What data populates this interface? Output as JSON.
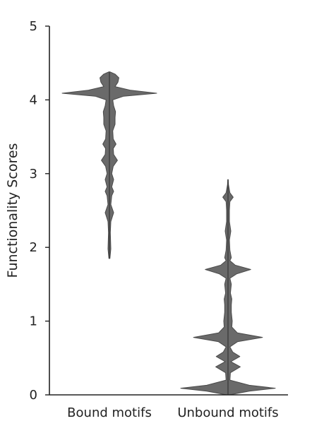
{
  "chart_data": {
    "type": "violin",
    "title": "",
    "xlabel": "",
    "ylabel": "Functionality Scores",
    "ylim": [
      0,
      5
    ],
    "yticks": [
      0,
      1,
      2,
      3,
      4,
      5
    ],
    "categories": [
      "Bound motifs",
      "Unbound motifs"
    ],
    "grid": false,
    "violin_color": "#6a6a6a",
    "series": [
      {
        "category": "Bound motifs",
        "range": [
          1.85,
          4.38
        ],
        "profile": [
          [
            1.85,
            0.01
          ],
          [
            1.98,
            0.03
          ],
          [
            2.2,
            0.02
          ],
          [
            2.35,
            0.03
          ],
          [
            2.47,
            0.09
          ],
          [
            2.58,
            0.03
          ],
          [
            2.7,
            0.05
          ],
          [
            2.76,
            0.09
          ],
          [
            2.82,
            0.05
          ],
          [
            2.92,
            0.09
          ],
          [
            3.0,
            0.05
          ],
          [
            3.1,
            0.08
          ],
          [
            3.18,
            0.17
          ],
          [
            3.26,
            0.09
          ],
          [
            3.34,
            0.08
          ],
          [
            3.4,
            0.14
          ],
          [
            3.47,
            0.08
          ],
          [
            3.58,
            0.07
          ],
          [
            3.67,
            0.12
          ],
          [
            3.76,
            0.12
          ],
          [
            3.84,
            0.13
          ],
          [
            3.92,
            0.09
          ],
          [
            4.0,
            0.07
          ],
          [
            4.05,
            0.3
          ],
          [
            4.09,
            1.0
          ],
          [
            4.13,
            0.45
          ],
          [
            4.18,
            0.12
          ],
          [
            4.24,
            0.18
          ],
          [
            4.3,
            0.2
          ],
          [
            4.35,
            0.12
          ],
          [
            4.38,
            0.01
          ]
        ]
      },
      {
        "category": "Unbound motifs",
        "range": [
          0.0,
          2.92
        ],
        "profile": [
          [
            0.0,
            0.03
          ],
          [
            0.05,
            0.45
          ],
          [
            0.09,
            1.0
          ],
          [
            0.13,
            0.45
          ],
          [
            0.2,
            0.04
          ],
          [
            0.3,
            0.05
          ],
          [
            0.38,
            0.26
          ],
          [
            0.45,
            0.06
          ],
          [
            0.52,
            0.25
          ],
          [
            0.58,
            0.1
          ],
          [
            0.65,
            0.04
          ],
          [
            0.72,
            0.2
          ],
          [
            0.78,
            0.73
          ],
          [
            0.84,
            0.2
          ],
          [
            0.92,
            0.08
          ],
          [
            1.0,
            0.09
          ],
          [
            1.12,
            0.07
          ],
          [
            1.22,
            0.07
          ],
          [
            1.3,
            0.08
          ],
          [
            1.38,
            0.05
          ],
          [
            1.5,
            0.07
          ],
          [
            1.58,
            0.04
          ],
          [
            1.64,
            0.18
          ],
          [
            1.7,
            0.48
          ],
          [
            1.76,
            0.15
          ],
          [
            1.82,
            0.04
          ],
          [
            1.86,
            0.07
          ],
          [
            1.96,
            0.04
          ],
          [
            2.1,
            0.03
          ],
          [
            2.22,
            0.06
          ],
          [
            2.35,
            0.03
          ],
          [
            2.5,
            0.03
          ],
          [
            2.62,
            0.04
          ],
          [
            2.68,
            0.11
          ],
          [
            2.74,
            0.04
          ],
          [
            2.85,
            0.01
          ],
          [
            2.92,
            0.005
          ]
        ]
      }
    ]
  }
}
